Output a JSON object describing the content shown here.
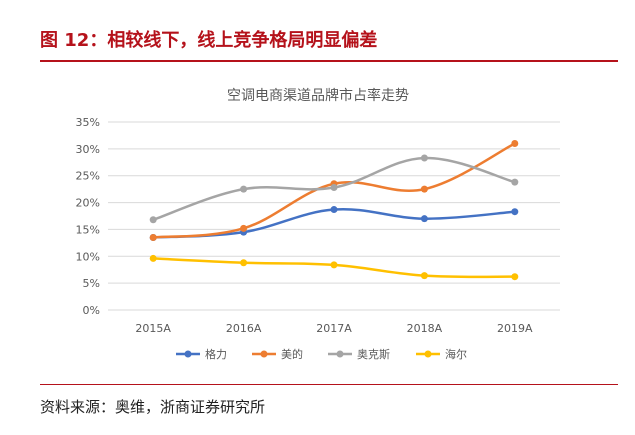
{
  "header": {
    "figure_title": "图 12：相较线下，线上竞争格局明显偏差"
  },
  "footer": {
    "source": "资料来源：奥维，浙商证券研究所"
  },
  "chart_data": {
    "type": "line",
    "title": "空调电商渠道品牌市占率走势",
    "categories": [
      "2015A",
      "2016A",
      "2017A",
      "2018A",
      "2019A"
    ],
    "ylim": [
      0,
      35
    ],
    "yticks": [
      "0%",
      "5%",
      "10%",
      "15%",
      "20%",
      "25%",
      "30%",
      "35%"
    ],
    "ytick_values": [
      0,
      5,
      10,
      15,
      20,
      25,
      30,
      35
    ],
    "xlabel": "",
    "ylabel": "",
    "grid": true,
    "legend_position": "bottom",
    "series": [
      {
        "name": "格力",
        "color": "#4472c4",
        "values": [
          13.5,
          14.5,
          18.7,
          17.0,
          18.3
        ]
      },
      {
        "name": "美的",
        "color": "#ed7d31",
        "values": [
          13.5,
          15.2,
          23.5,
          22.5,
          31.0
        ]
      },
      {
        "name": "奥克斯",
        "color": "#a5a5a5",
        "values": [
          16.8,
          22.5,
          22.8,
          28.3,
          23.8
        ]
      },
      {
        "name": "海尔",
        "color": "#ffc000",
        "values": [
          9.6,
          8.8,
          8.4,
          6.4,
          6.2
        ]
      }
    ]
  }
}
